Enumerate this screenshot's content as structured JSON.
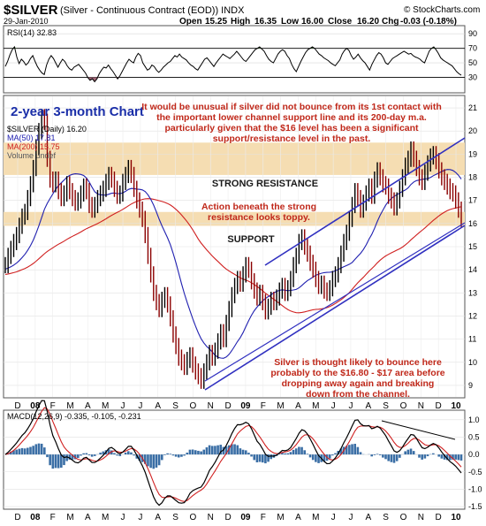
{
  "header": {
    "symbol": "$SILVER",
    "description": "(Silver - Continuous Contract (EOD)) INDX",
    "site": "© StockCharts.com",
    "date": "29-Jan-2010",
    "open_label": "Open",
    "open": "15.25",
    "high_label": "High",
    "high": "16.35",
    "low_label": "Low",
    "low": "16.00",
    "close_label": "Close",
    "close": "16.20",
    "chg_label": "Chg",
    "chg": "-0.03 (-0.18%)"
  },
  "annotations": {
    "chart_title": "2-year 3-month Chart",
    "top_comment": [
      "It would be unusual if silver did not bounce from its 1st contact with",
      "the important lower channel support line and its 200-day m.a.",
      "particularly given that the $16 level has been a significant",
      "support/resistance level in the past."
    ],
    "resistance_label": "STRONG RESISTANCE",
    "action_comment": [
      "Action beneath the strong",
      "resistance looks toppy."
    ],
    "support_label": "SUPPORT",
    "bottom_comment": [
      "Silver is thought likely to bounce here",
      "probably to the $16.80 - $17 area before",
      "dropping away again and breaking",
      "down from the channel."
    ]
  },
  "colors": {
    "price": "#8b0000",
    "ma50": "#2020b0",
    "ma200": "#d02020",
    "channel": "#3030c0",
    "zone": "#f5ddb2",
    "annotation_red": "#c0281a",
    "annotation_blue": "#1a2ea8",
    "macd_hist": "#3a6ea5",
    "rsi_fill_high": "#6a9a5a",
    "rsi_fill_low": "#9a6070"
  },
  "chart_data": [
    {
      "type": "line",
      "panel": "rsi",
      "legend": "RSI(14) 32.83",
      "ylim": [
        10,
        100
      ],
      "yticks": [
        30,
        50,
        70,
        90
      ],
      "reference_lines": [
        30,
        70
      ],
      "months": [
        "D",
        "08",
        "F",
        "M",
        "A",
        "M",
        "J",
        "J",
        "A",
        "S",
        "O",
        "N",
        "D",
        "09",
        "F",
        "M",
        "A",
        "M",
        "J",
        "J",
        "A",
        "S",
        "O",
        "N",
        "D",
        "10"
      ],
      "values": [
        45,
        52,
        61,
        68,
        72,
        58,
        49,
        55,
        52,
        47,
        50,
        56,
        60,
        52,
        45,
        40,
        36,
        34,
        47,
        55,
        60,
        56,
        50,
        44,
        50,
        55,
        52,
        46,
        42,
        40,
        44,
        46,
        48,
        44,
        40,
        36,
        30,
        26,
        28,
        24,
        28,
        35,
        40,
        44,
        43,
        47,
        42,
        38,
        33,
        28,
        32,
        38,
        44,
        50,
        55,
        52,
        50,
        58,
        63,
        60,
        50,
        45,
        40,
        42,
        47,
        45,
        40,
        37,
        40,
        44,
        47,
        50,
        52,
        56,
        60,
        58,
        62,
        58,
        56,
        54,
        50,
        47,
        45,
        42,
        40,
        45,
        50,
        55,
        57,
        53,
        49,
        45,
        50,
        54,
        58,
        62,
        60,
        58,
        56,
        59,
        62,
        66,
        62,
        58,
        54,
        52,
        56,
        60,
        64,
        68,
        70,
        72,
        69,
        66,
        60,
        55,
        52,
        50,
        56,
        62,
        66,
        68,
        66,
        60,
        56,
        48,
        42,
        38,
        45,
        52,
        58,
        64,
        68,
        70,
        72,
        70,
        66,
        62,
        60,
        57,
        55,
        53,
        50,
        48,
        46,
        50,
        54,
        62,
        67,
        70,
        67,
        60,
        55,
        58,
        62,
        57,
        53,
        50,
        45,
        40,
        48,
        54,
        60,
        64,
        62,
        57,
        50,
        48,
        52,
        56,
        58,
        60,
        62,
        64,
        66,
        64,
        62,
        63,
        60,
        58,
        57,
        55,
        52,
        50,
        58,
        66,
        70,
        72,
        68,
        63,
        57,
        54,
        52,
        50,
        48,
        46,
        42,
        38,
        35,
        33
      ]
    },
    {
      "type": "line",
      "panel": "price",
      "legend": [
        "$SILVER (Daily) 16.20",
        "MA(50) 17.81",
        "MA(200) 15.75",
        "Volume undef"
      ],
      "ylim": [
        8.5,
        21.5
      ],
      "yticks": [
        9,
        10,
        11,
        12,
        13,
        14,
        15,
        16,
        17,
        18,
        19,
        20,
        21
      ],
      "months": [
        "D",
        "08",
        "F",
        "M",
        "A",
        "M",
        "J",
        "J",
        "A",
        "S",
        "O",
        "N",
        "D",
        "09",
        "F",
        "M",
        "A",
        "M",
        "J",
        "J",
        "A",
        "S",
        "O",
        "N",
        "D",
        "10"
      ],
      "series": [
        {
          "name": "$SILVER (Daily) 16.20",
          "values": [
            14.2,
            14.6,
            14.9,
            15.2,
            15.5,
            15.9,
            16.3,
            16.5,
            17.1,
            17.7,
            18.4,
            19.3,
            20.0,
            20.6,
            20.4,
            18.8,
            17.9,
            17.7,
            17.9,
            17.4,
            17.1,
            17.3,
            17.7,
            17.4,
            17.1,
            16.9,
            17.0,
            17.3,
            17.6,
            17.4,
            16.8,
            16.6,
            16.8,
            17.1,
            17.3,
            17.5,
            17.8,
            18.1,
            17.9,
            17.5,
            17.2,
            17.3,
            17.8,
            18.1,
            18.4,
            18.1,
            17.5,
            17.0,
            16.6,
            16.2,
            15.5,
            14.6,
            13.8,
            13.0,
            12.6,
            12.3,
            12.7,
            12.9,
            12.5,
            11.9,
            11.2,
            10.7,
            10.2,
            10.0,
            9.8,
            10.1,
            10.3,
            9.9,
            9.6,
            9.4,
            9.2,
            9.6,
            10.0,
            10.4,
            10.2,
            10.5,
            10.9,
            11.3,
            11.0,
            11.7,
            12.3,
            12.9,
            13.3,
            13.6,
            13.4,
            13.8,
            14.2,
            14.0,
            13.5,
            13.1,
            12.8,
            13.0,
            12.6,
            12.2,
            12.4,
            12.7,
            12.6,
            12.8,
            13.1,
            13.3,
            13.0,
            13.2,
            13.6,
            14.2,
            14.6,
            15.2,
            15.4,
            15.0,
            14.7,
            14.3,
            14.0,
            13.6,
            13.3,
            13.4,
            13.1,
            13.0,
            13.2,
            13.6,
            13.8,
            14.2,
            14.7,
            15.2,
            15.6,
            16.2,
            16.8,
            17.4,
            17.1,
            16.6,
            16.9,
            17.3,
            17.6,
            17.2,
            17.9,
            18.3,
            18.0,
            17.7,
            17.6,
            17.2,
            17.0,
            16.7,
            17.0,
            17.5,
            18.0,
            18.5,
            18.8,
            19.2,
            18.8,
            18.4,
            18.0,
            17.8,
            18.2,
            18.6,
            18.9,
            19.0,
            18.7,
            18.3,
            18.0,
            17.8,
            17.6,
            17.4,
            17.3,
            17.0,
            16.6,
            16.2
          ]
        },
        {
          "name": "MA(50) 17.81",
          "values": []
        },
        {
          "name": "MA(200) 15.75",
          "values": []
        }
      ],
      "zones": [
        {
          "label": "STRONG RESISTANCE",
          "from": 18.1,
          "to": 19.5
        },
        {
          "label": "SUPPORT",
          "from": 15.9,
          "to": 16.5
        }
      ]
    },
    {
      "type": "line",
      "panel": "macd",
      "legend": [
        "MACD(12,26,9) -0.335, -0.105, -0.231"
      ],
      "ylim": [
        -1.55,
        1.25
      ],
      "yticks": [
        -1.5,
        -1.0,
        -0.5,
        0.0,
        0.5,
        1.0
      ],
      "months": [
        "D",
        "08",
        "F",
        "M",
        "A",
        "M",
        "J",
        "J",
        "A",
        "S",
        "O",
        "N",
        "D",
        "09",
        "F",
        "M",
        "A",
        "M",
        "J",
        "J",
        "A",
        "S",
        "O",
        "N",
        "D",
        "10"
      ],
      "series": [
        {
          "name": "MACD",
          "values": []
        },
        {
          "name": "Signal",
          "values": []
        }
      ]
    }
  ]
}
